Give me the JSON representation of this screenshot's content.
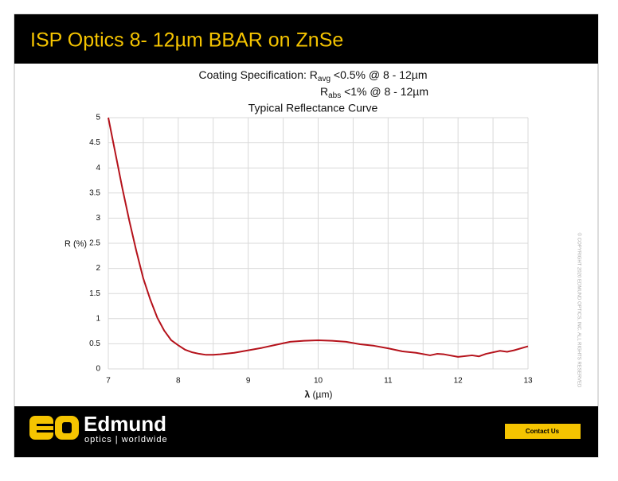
{
  "header": {
    "title": "ISP Optics 8- 12µm BBAR on ZnSe"
  },
  "chart_data": {
    "type": "line",
    "spec_lines": [
      {
        "prefix": "Coating Specification: R",
        "sub": "avg",
        "suffix": " <0.5% @ 8 - 12µm"
      },
      {
        "prefix": "R",
        "sub": "abs",
        "suffix": " <1% @ 8 - 12µm"
      }
    ],
    "title": "Typical Reflectance Curve",
    "y_label": "R (%)",
    "x_label": {
      "symbol": "λ",
      "unit": " (µm)"
    },
    "xlim": [
      7,
      13
    ],
    "ylim": [
      0,
      5
    ],
    "xticks": [
      7,
      8,
      9,
      10,
      11,
      12,
      13
    ],
    "xgrid": [
      7,
      7.5,
      8,
      8.5,
      9,
      9.5,
      10,
      10.5,
      11,
      11.5,
      12,
      12.5,
      13
    ],
    "yticks": [
      0,
      0.5,
      1,
      1.5,
      2,
      2.5,
      3,
      3.5,
      4,
      4.5,
      5
    ],
    "grid": true,
    "series": [
      {
        "color": "#b5121b",
        "x": [
          7.0,
          7.1,
          7.2,
          7.3,
          7.4,
          7.5,
          7.6,
          7.7,
          7.8,
          7.9,
          8.0,
          8.1,
          8.2,
          8.3,
          8.4,
          8.5,
          8.6,
          8.8,
          9.0,
          9.2,
          9.4,
          9.6,
          9.8,
          10.0,
          10.2,
          10.4,
          10.6,
          10.8,
          11.0,
          11.2,
          11.4,
          11.6,
          11.7,
          11.8,
          12.0,
          12.2,
          12.3,
          12.4,
          12.6,
          12.7,
          12.8,
          13.0
        ],
        "values": [
          5.0,
          4.3,
          3.6,
          2.95,
          2.35,
          1.8,
          1.38,
          1.02,
          0.76,
          0.57,
          0.47,
          0.38,
          0.33,
          0.3,
          0.28,
          0.28,
          0.29,
          0.32,
          0.37,
          0.42,
          0.48,
          0.54,
          0.56,
          0.57,
          0.56,
          0.54,
          0.49,
          0.46,
          0.41,
          0.35,
          0.32,
          0.27,
          0.3,
          0.29,
          0.24,
          0.27,
          0.25,
          0.3,
          0.36,
          0.34,
          0.37,
          0.45
        ]
      }
    ]
  },
  "copyright": "© COPYRIGHT 2020 EDMUND OPTICS, INC. ALL RIGHTS RESERVED",
  "footer": {
    "brand": "Edmund",
    "tagline": "optics | worldwide",
    "button": "Contact Us"
  }
}
